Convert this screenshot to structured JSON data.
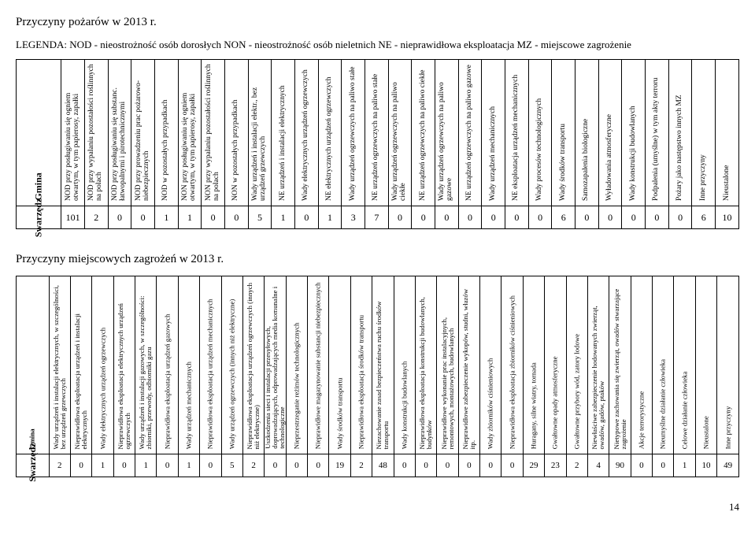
{
  "section1": {
    "title": "Przyczyny pożarów  w 2013 r.",
    "legend": "LEGENDA: NOD - nieostrożność osób dorosłych NON - nieostrożność osób nieletnich NE - nieprawidłowa eksploatacja MZ - miejscowe zagrożenie",
    "gmina_label": "Gmina",
    "row_label": "Swarzędz",
    "headers": [
      "NOD przy posługiwaniu się ogniem otwartym, w tym papierosy, zapałki",
      "NOD przy wypalaniu pozostałości roślinnych na polach",
      "NOD przy posługiwaniu się substanc. łatwopalnymi i pirotechnicznymi",
      "NOD przy prowadzeniu prac pożarowo-niebezpiecznych",
      "NOD w pozostałych przypadkach",
      "NON przy posługiwaniu się ogniem otwartym, w tym papierosy, zapałki",
      "NON przy wypalaniu pozostałości roślinnych na polach",
      "NON w pozostałych przypadkach",
      "Wady urządzeń i instalacji elektr., bez urządzeń grzewczych",
      "NE urządzeń i instalacji elektrycznych",
      "Wady elektrycznych urządzeń ogrzewczych",
      "NE elektrycznych urządzeń ogrzewczych",
      "Wady urządzeń ogrzewczych na paliwo stałe",
      "NE urządzeń ogrzewczych na paliwo stałe",
      "Wady urządzeń ogrzewczych na paliwo ciekłe",
      "NE urządzeń ogrzewczych na paliwo ciekłe",
      "Wady urządzeń ogrzewczych na paliwo gazowe",
      "NE urządzeń ogrzewczych na paliwo gazowe",
      "Wady urządzeń mechanicznych",
      "NE eksploatacja urządzeń mechanicznych",
      "Wady procesów technologicznych",
      "Wady środków transportu",
      "Samozapalenia biologiczne",
      "Wyładowania atmosferyczne",
      "Wady konstrukcji budowlanych",
      "Podpalenia (umyślne) w tym akty terroru",
      "Pożary jako następstwo innych MZ",
      "Inne przyczyny",
      "Nieustalone"
    ],
    "values": [
      101,
      2,
      0,
      0,
      1,
      1,
      0,
      0,
      5,
      1,
      0,
      1,
      3,
      7,
      0,
      0,
      0,
      0,
      0,
      0,
      0,
      6,
      0,
      0,
      0,
      0,
      0,
      6,
      10
    ]
  },
  "section2": {
    "title": "Przyczyny miejscowych zagrożeń w 2013 r.",
    "gmina_label": "Gmina",
    "row_label": "Swarzędz",
    "headers": [
      "Wady urządzeń i instalacji elektrycznych, w szczególności, bez urządzeń grzewczych",
      "Nieprawidłowa eksploatacja urządzeń i instalacji elektrycznych",
      "Wady elektrycznych urządzeń ogrzewczych",
      "Nieprawidłowa eksploatacja elektrycznych urządzeń ogrzewczych",
      "Wady urządzeń i instalacji gazowych, w szczególności: zbiorniki, przewody, odbiorniki gazu",
      "Nieprawidłowa eksploatacja urządzeń gazowych",
      "Wady urządzeń mechanicznych",
      "Nieprawidłowa eksploatacja urządzeń mechanicznych",
      "Wady urządzeń ogrzewczych (innych niż elektryczne)",
      "Nieprawidłowa eksploatacja urządzeń ogrzewczych (innych niż elektryczne)",
      "Uszkodzenia sieci i instalacji przesyłowych, doprowadzających, odprowadzających media komunalne i technologiczne",
      "Nieprzestrzeganie reżimów technologicznych",
      "Nieprawidłowe magazynowanie substancji niebezpiecznych",
      "Wady środków transportu",
      "Nieprawidłowa eksploatacja środków transportu",
      "Niezachowanie zasad bezpieczeństwa ruchu środków transportu",
      "Wady konstrukcji budowlanych",
      "Nieprawidłowa eksploatacja konstrukcji budowlanych, budynków",
      "Nieprawidłowe wykonanie prac instalacyjnych, remontowych, montażowych, budowlanych",
      "Nieprawidłowe zabezpieczenie wykopów, studni, włazów itp.",
      "Wady zbiorników ciśnieniowych",
      "Nieprawidłowa eksploatacja zbiorników ciśnieniowych",
      "Huragany, silne wiatry, tornada",
      "Gwałtowne opady atmosferyczne",
      "Gwałtowne przybory wód, zatory lodowe",
      "Niewłaściwe zabezpieczenie hodowanych zwierząt, owadów, gadów, ptaków",
      "Nietypowe zachowania się zwierząt, owadów stwarzające zagrożenie",
      "Akcje terrorystyczne",
      "Nieumyślne działanie człowieka",
      "Celowe działanie człowieka",
      "Nieustalone",
      "Inne przyczyny"
    ],
    "values": [
      2,
      0,
      1,
      0,
      1,
      0,
      1,
      0,
      5,
      2,
      0,
      0,
      0,
      19,
      2,
      48,
      0,
      0,
      0,
      0,
      0,
      0,
      29,
      23,
      2,
      4,
      90,
      0,
      0,
      1,
      10,
      49
    ]
  },
  "page_number": "14"
}
